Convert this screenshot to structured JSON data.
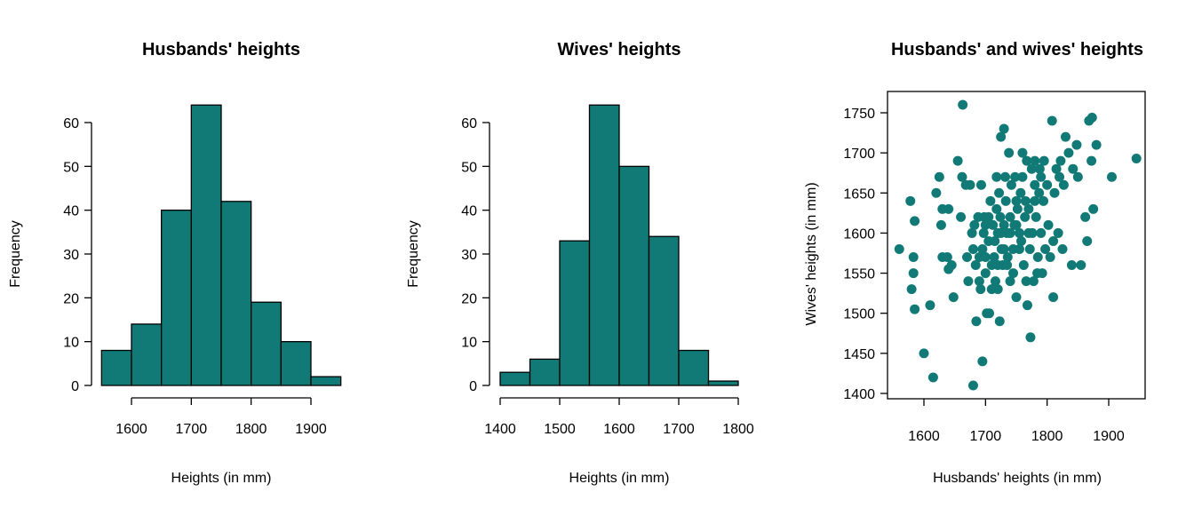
{
  "fill_color": "#117a77",
  "chart_data": [
    {
      "type": "bar",
      "subtype": "histogram",
      "title": "Husbands' heights",
      "xlabel": "Heights (in mm)",
      "ylabel": "Frequency",
      "bin_edges": [
        1550,
        1600,
        1650,
        1700,
        1750,
        1800,
        1850,
        1900,
        1950
      ],
      "values": [
        8,
        14,
        40,
        64,
        42,
        19,
        10,
        2
      ],
      "xticks": [
        1600,
        1700,
        1800,
        1900
      ],
      "yticks": [
        0,
        10,
        20,
        30,
        40,
        50,
        60
      ],
      "ylim": [
        0,
        64
      ],
      "grid": false
    },
    {
      "type": "bar",
      "subtype": "histogram",
      "title": "Wives' heights",
      "xlabel": "Heights (in mm)",
      "ylabel": "Frequency",
      "bin_edges": [
        1400,
        1450,
        1500,
        1550,
        1600,
        1650,
        1700,
        1750,
        1800
      ],
      "values": [
        3,
        6,
        33,
        64,
        50,
        34,
        8,
        1
      ],
      "xticks": [
        1400,
        1500,
        1600,
        1700,
        1800
      ],
      "yticks": [
        0,
        10,
        20,
        30,
        40,
        50,
        60
      ],
      "ylim": [
        0,
        64
      ],
      "grid": false
    },
    {
      "type": "scatter",
      "title": "Husbands' and wives' heights",
      "xlabel": "Husbands' heights (in mm)",
      "ylabel": "Wives' heights (in mm)",
      "xticks": [
        1600,
        1700,
        1800,
        1900
      ],
      "yticks": [
        1400,
        1450,
        1500,
        1550,
        1600,
        1650,
        1700,
        1750
      ],
      "xlim": [
        1550,
        1950
      ],
      "ylim": [
        1400,
        1760
      ],
      "grid": false,
      "points": [
        [
          1560,
          1580
        ],
        [
          1578,
          1640
        ],
        [
          1580,
          1530
        ],
        [
          1583,
          1550
        ],
        [
          1583,
          1570
        ],
        [
          1585,
          1615
        ],
        [
          1585,
          1505
        ],
        [
          1600,
          1450
        ],
        [
          1610,
          1510
        ],
        [
          1615,
          1420
        ],
        [
          1620,
          1650
        ],
        [
          1625,
          1670
        ],
        [
          1628,
          1610
        ],
        [
          1630,
          1630
        ],
        [
          1630,
          1570
        ],
        [
          1638,
          1570
        ],
        [
          1640,
          1630
        ],
        [
          1640,
          1555
        ],
        [
          1645,
          1560
        ],
        [
          1648,
          1520
        ],
        [
          1655,
          1690
        ],
        [
          1660,
          1620
        ],
        [
          1662,
          1670
        ],
        [
          1663,
          1760
        ],
        [
          1668,
          1660
        ],
        [
          1670,
          1570
        ],
        [
          1672,
          1540
        ],
        [
          1675,
          1660
        ],
        [
          1678,
          1600
        ],
        [
          1680,
          1580
        ],
        [
          1680,
          1410
        ],
        [
          1682,
          1610
        ],
        [
          1684,
          1560
        ],
        [
          1685,
          1490
        ],
        [
          1688,
          1620
        ],
        [
          1690,
          1540
        ],
        [
          1692,
          1530
        ],
        [
          1693,
          1660
        ],
        [
          1695,
          1580
        ],
        [
          1695,
          1440
        ],
        [
          1697,
          1600
        ],
        [
          1698,
          1620
        ],
        [
          1700,
          1550
        ],
        [
          1702,
          1500
        ],
        [
          1705,
          1590
        ],
        [
          1706,
          1500
        ],
        [
          1708,
          1640
        ],
        [
          1710,
          1560
        ],
        [
          1712,
          1610
        ],
        [
          1714,
          1570
        ],
        [
          1716,
          1540
        ],
        [
          1718,
          1670
        ],
        [
          1720,
          1600
        ],
        [
          1720,
          1530
        ],
        [
          1722,
          1650
        ],
        [
          1723,
          1490
        ],
        [
          1724,
          1620
        ],
        [
          1725,
          1720
        ],
        [
          1726,
          1580
        ],
        [
          1728,
          1560
        ],
        [
          1730,
          1730
        ],
        [
          1730,
          1610
        ],
        [
          1732,
          1670
        ],
        [
          1733,
          1640
        ],
        [
          1735,
          1600
        ],
        [
          1736,
          1570
        ],
        [
          1738,
          1700
        ],
        [
          1740,
          1620
        ],
        [
          1740,
          1540
        ],
        [
          1742,
          1660
        ],
        [
          1745,
          1580
        ],
        [
          1747,
          1610
        ],
        [
          1748,
          1670
        ],
        [
          1750,
          1520
        ],
        [
          1750,
          1640
        ],
        [
          1752,
          1630
        ],
        [
          1755,
          1600
        ],
        [
          1757,
          1650
        ],
        [
          1758,
          1590
        ],
        [
          1760,
          1700
        ],
        [
          1762,
          1560
        ],
        [
          1764,
          1620
        ],
        [
          1766,
          1540
        ],
        [
          1767,
          1690
        ],
        [
          1768,
          1510
        ],
        [
          1770,
          1630
        ],
        [
          1772,
          1580
        ],
        [
          1773,
          1470
        ],
        [
          1775,
          1680
        ],
        [
          1776,
          1600
        ],
        [
          1778,
          1540
        ],
        [
          1780,
          1690
        ],
        [
          1780,
          1660
        ],
        [
          1782,
          1620
        ],
        [
          1784,
          1550
        ],
        [
          1785,
          1570
        ],
        [
          1787,
          1650
        ],
        [
          1788,
          1680
        ],
        [
          1790,
          1600
        ],
        [
          1792,
          1550
        ],
        [
          1794,
          1640
        ],
        [
          1795,
          1690
        ],
        [
          1797,
          1580
        ],
        [
          1800,
          1660
        ],
        [
          1802,
          1610
        ],
        [
          1805,
          1570
        ],
        [
          1808,
          1740
        ],
        [
          1810,
          1520
        ],
        [
          1810,
          1590
        ],
        [
          1812,
          1650
        ],
        [
          1815,
          1680
        ],
        [
          1818,
          1600
        ],
        [
          1820,
          1670
        ],
        [
          1822,
          1690
        ],
        [
          1825,
          1580
        ],
        [
          1827,
          1660
        ],
        [
          1830,
          1720
        ],
        [
          1835,
          1700
        ],
        [
          1840,
          1560
        ],
        [
          1842,
          1680
        ],
        [
          1848,
          1710
        ],
        [
          1850,
          1670
        ],
        [
          1855,
          1560
        ],
        [
          1862,
          1620
        ],
        [
          1865,
          1590
        ],
        [
          1868,
          1740
        ],
        [
          1872,
          1690
        ],
        [
          1873,
          1744
        ],
        [
          1875,
          1630
        ],
        [
          1880,
          1710
        ],
        [
          1905,
          1670
        ],
        [
          1945,
          1693
        ],
        [
          1700,
          1610
        ],
        [
          1705,
          1620
        ],
        [
          1715,
          1590
        ],
        [
          1718,
          1630
        ],
        [
          1725,
          1600
        ],
        [
          1730,
          1580
        ],
        [
          1735,
          1560
        ],
        [
          1745,
          1550
        ],
        [
          1755,
          1580
        ],
        [
          1760,
          1670
        ],
        [
          1765,
          1640
        ],
        [
          1770,
          1600
        ],
        [
          1690,
          1570
        ],
        [
          1700,
          1570
        ],
        [
          1710,
          1530
        ],
        [
          1720,
          1560
        ],
        [
          1740,
          1600
        ],
        [
          1750,
          1610
        ],
        [
          1780,
          1640
        ],
        [
          1790,
          1670
        ]
      ]
    }
  ]
}
